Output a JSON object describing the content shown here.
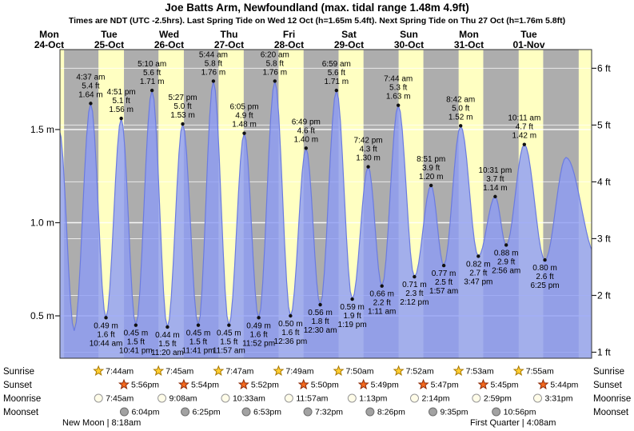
{
  "title": "Joe Batts Arm, Newfoundland (max. tidal range 1.48m 4.9ft)",
  "subtitle": "Times are NDT (UTC -2.5hrs). Last Spring Tide on Wed 12 Oct (h=1.65m 5.4ft). Next Spring Tide on Thu 27 Oct (h=1.76m 5.8ft)",
  "days": [
    {
      "name": "Mon",
      "date": "24-Oct"
    },
    {
      "name": "Tue",
      "date": "25-Oct"
    },
    {
      "name": "Wed",
      "date": "26-Oct"
    },
    {
      "name": "Thu",
      "date": "27-Oct"
    },
    {
      "name": "Fri",
      "date": "28-Oct"
    },
    {
      "name": "Sat",
      "date": "29-Oct"
    },
    {
      "name": "Sun",
      "date": "30-Oct"
    },
    {
      "name": "Mon",
      "date": "31-Oct"
    },
    {
      "name": "Tue",
      "date": "01-Nov"
    }
  ],
  "axes": {
    "left_labels": [
      "1.5 m",
      "1.0 m",
      "0.5 m"
    ],
    "left_values": [
      1.5,
      1.0,
      0.5
    ],
    "right_labels": [
      "6 ft",
      "5 ft",
      "4 ft",
      "3 ft",
      "2 ft",
      "1 ft"
    ],
    "right_values": [
      6,
      5,
      4,
      3,
      2,
      1
    ]
  },
  "chart_data": {
    "type": "area",
    "description": "tide height over time, day/night shaded bands, labeled high and low tides",
    "ylim_m": [
      0.27,
      1.93
    ],
    "extrema": [
      {
        "type": "high",
        "day": 0,
        "time": "4:37 am",
        "ft": "5.4 ft",
        "m": "1.64 m"
      },
      {
        "type": "low",
        "day": 0,
        "time": "10:44 am",
        "ft": "1.6 ft",
        "m": "0.49 m"
      },
      {
        "type": "high",
        "day": 0,
        "time": "4:51 pm",
        "ft": "5.1 ft",
        "m": "1.56 m"
      },
      {
        "type": "low",
        "day": 0,
        "time": "10:41 pm",
        "ft": "1.5 ft",
        "m": "0.45 m"
      },
      {
        "type": "high",
        "day": 1,
        "time": "5:10 am",
        "ft": "5.6 ft",
        "m": "1.71 m"
      },
      {
        "type": "low",
        "day": 1,
        "time": "11:20 am",
        "ft": "1.5 ft",
        "m": "0.44 m"
      },
      {
        "type": "high",
        "day": 1,
        "time": "5:27 pm",
        "ft": "5.0 ft",
        "m": "1.53 m"
      },
      {
        "type": "low",
        "day": 1,
        "time": "11:41 pm",
        "ft": "1.5 ft",
        "m": "0.45 m"
      },
      {
        "type": "high",
        "day": 2,
        "time": "5:44 am",
        "ft": "5.8 ft",
        "m": "1.76 m"
      },
      {
        "type": "low",
        "day": 2,
        "time": "11:57 am",
        "ft": "1.5 ft",
        "m": "0.45 m"
      },
      {
        "type": "high",
        "day": 2,
        "time": "6:05 pm",
        "ft": "4.9 ft",
        "m": "1.48 m"
      },
      {
        "type": "low",
        "day": 2,
        "time": "11:52 pm",
        "ft": "1.6 ft",
        "m": "0.49 m"
      },
      {
        "type": "high",
        "day": 3,
        "time": "6:20 am",
        "ft": "5.8 ft",
        "m": "1.76 m"
      },
      {
        "type": "low",
        "day": 3,
        "time": "12:36 pm",
        "ft": "1.6 ft",
        "m": "0.50 m"
      },
      {
        "type": "high",
        "day": 3,
        "time": "6:49 pm",
        "ft": "4.6 ft",
        "m": "1.40 m"
      },
      {
        "type": "low",
        "day": 4,
        "time": "12:30 am",
        "ft": "1.8 ft",
        "m": "0.56 m"
      },
      {
        "type": "high",
        "day": 4,
        "time": "6:59 am",
        "ft": "5.6 ft",
        "m": "1.71 m"
      },
      {
        "type": "low",
        "day": 4,
        "time": "1:19 pm",
        "ft": "1.9 ft",
        "m": "0.59 m"
      },
      {
        "type": "high",
        "day": 4,
        "time": "7:42 pm",
        "ft": "4.3 ft",
        "m": "1.30 m"
      },
      {
        "type": "low",
        "day": 5,
        "time": "1:11 am",
        "ft": "2.2 ft",
        "m": "0.66 m"
      },
      {
        "type": "high",
        "day": 5,
        "time": "7:44 am",
        "ft": "5.3 ft",
        "m": "1.63 m"
      },
      {
        "type": "low",
        "day": 5,
        "time": "2:12 pm",
        "ft": "2.3 ft",
        "m": "0.71 m"
      },
      {
        "type": "high",
        "day": 5,
        "time": "8:51 pm",
        "ft": "3.9 ft",
        "m": "1.20 m"
      },
      {
        "type": "low",
        "day": 6,
        "time": "1:57 am",
        "ft": "2.5 ft",
        "m": "0.77 m"
      },
      {
        "type": "high",
        "day": 6,
        "time": "8:42 am",
        "ft": "5.0 ft",
        "m": "1.52 m"
      },
      {
        "type": "low",
        "day": 6,
        "time": "3:47 pm",
        "ft": "2.7 ft",
        "m": "0.82 m"
      },
      {
        "type": "high",
        "day": 6,
        "time": "10:31 pm",
        "ft": "3.7 ft",
        "m": "1.14 m"
      },
      {
        "type": "low",
        "day": 7,
        "time": "2:56 am",
        "ft": "2.9 ft",
        "m": "0.88 m"
      },
      {
        "type": "high",
        "day": 7,
        "time": "10:11 am",
        "ft": "4.7 ft",
        "m": "1.42 m"
      },
      {
        "type": "low",
        "day": 7,
        "time": "6:25 pm",
        "ft": "2.6 ft",
        "m": "0.80 m"
      }
    ]
  },
  "almanac": {
    "row_labels": [
      "Sunrise",
      "Sunset",
      "Moonrise",
      "Moonset"
    ],
    "sunrise": [
      "7:44am",
      "7:45am",
      "7:47am",
      "7:49am",
      "7:50am",
      "7:52am",
      "7:53am",
      "7:55am"
    ],
    "sunset": [
      "5:56pm",
      "5:54pm",
      "5:52pm",
      "5:50pm",
      "5:49pm",
      "5:47pm",
      "5:45pm",
      "5:44pm"
    ],
    "moonrise": [
      "7:45am",
      "9:08am",
      "10:33am",
      "11:57am",
      "1:13pm",
      "2:14pm",
      "2:59pm",
      "3:31pm"
    ],
    "moonset": [
      "6:04pm",
      "6:25pm",
      "6:53pm",
      "7:32pm",
      "8:26pm",
      "9:35pm",
      "10:56pm"
    ],
    "moon_phases": [
      {
        "name": "new-moon",
        "text": "New Moon | 8:18am"
      },
      {
        "name": "first-quarter",
        "text": "First Quarter | 4:08am"
      }
    ]
  },
  "colors": {
    "date_red": "#cc2222",
    "day_band": "#ffffc2",
    "night_band": "#adadad",
    "tide_fill": "#8c9bf5",
    "tide_stroke": "#6b7be0",
    "sunrise_star": "#ffcf33",
    "sunset_star": "#f4681d",
    "moonrise_circle": "#fffce8",
    "moonset_circle": "#a2a2a2"
  }
}
